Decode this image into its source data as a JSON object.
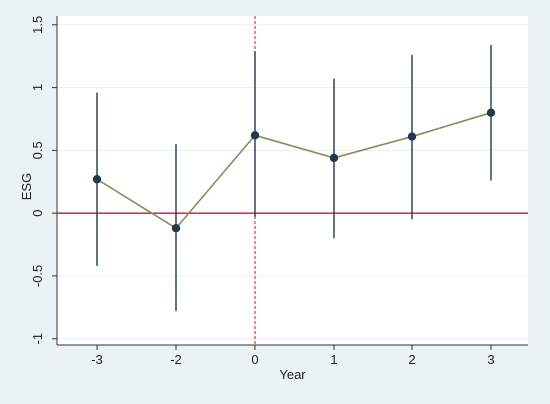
{
  "chart_data": {
    "type": "scatter",
    "xlabel": "Year",
    "ylabel": "ESG",
    "x_tick_labels": [
      "-3",
      "-2",
      "0",
      "1",
      "2",
      "3"
    ],
    "y_tick_labels": [
      "-1",
      "-0.5",
      "0",
      "0.5",
      "1",
      "1.5"
    ],
    "y_ticks": [
      -1,
      -0.5,
      0,
      0.5,
      1,
      1.5
    ],
    "ylim": [
      -1.05,
      1.57
    ],
    "grid": true,
    "reference_lines": {
      "horizontal_y": 0,
      "vertical_at_category": "0"
    },
    "series": [
      {
        "points": [
          {
            "x": "-3",
            "y": 0.27,
            "ci_low": -0.42,
            "ci_high": 0.96
          },
          {
            "x": "-2",
            "y": -0.12,
            "ci_low": -0.78,
            "ci_high": 0.55
          },
          {
            "x": "0",
            "y": 0.62,
            "ci_low": -0.03,
            "ci_high": 1.29
          },
          {
            "x": "1",
            "y": 0.44,
            "ci_low": -0.2,
            "ci_high": 1.07
          },
          {
            "x": "2",
            "y": 0.61,
            "ci_low": -0.05,
            "ci_high": 1.26
          },
          {
            "x": "3",
            "y": 0.8,
            "ci_low": 0.26,
            "ci_high": 1.34
          }
        ]
      }
    ],
    "colors": {
      "background": "#eaf2f3",
      "plot_background": "#ffffff",
      "gridline": "#e8eef0",
      "point": "#1f3a4d",
      "ci_line": "#1f3a4d",
      "connector": "#8b8c55",
      "zero_line": "#a3283c",
      "event_line": "#b22222"
    }
  }
}
